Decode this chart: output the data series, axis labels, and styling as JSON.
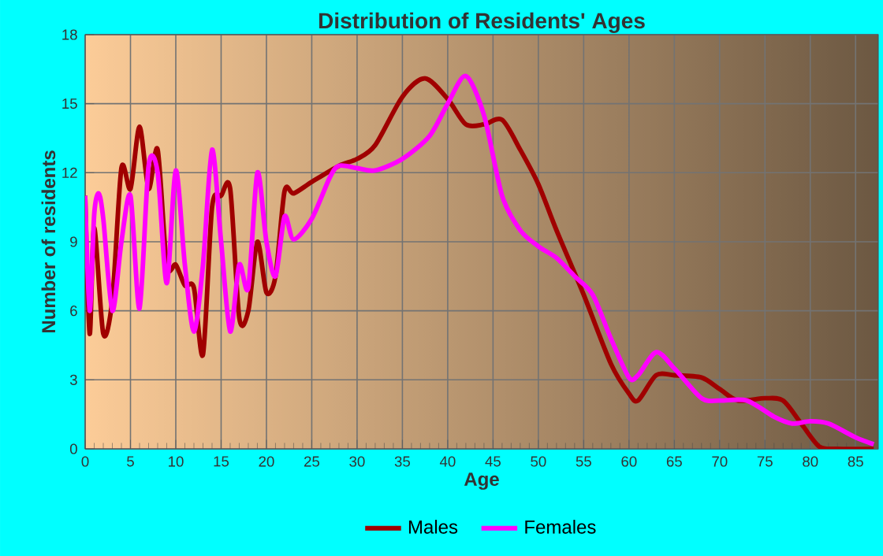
{
  "chart_data": {
    "type": "line",
    "title": "Distribution of Residents' Ages",
    "xlabel": "Age",
    "ylabel": "Number of residents",
    "xlim": [
      0,
      87.5
    ],
    "ylim": [
      0,
      18
    ],
    "xticks": [
      0,
      5,
      10,
      15,
      20,
      25,
      30,
      35,
      40,
      45,
      50,
      55,
      60,
      65,
      70,
      75,
      80,
      85
    ],
    "yticks": [
      0,
      3,
      6,
      9,
      12,
      15,
      18
    ],
    "grid": true,
    "legend": "bottom",
    "line_style": "solid",
    "series": [
      {
        "name": "Males",
        "color": "#a00000",
        "x": [
          0,
          0.5,
          1,
          2,
          3,
          4,
          5,
          6,
          7,
          8,
          9,
          10,
          11,
          12,
          13,
          14,
          15,
          16,
          17,
          18,
          19,
          20,
          21,
          22,
          23,
          25,
          28,
          30,
          32,
          35,
          37.5,
          40,
          42,
          44,
          46,
          48,
          50,
          52,
          55,
          58,
          60,
          61,
          63,
          65,
          68,
          70,
          72,
          75,
          77,
          79,
          81,
          83,
          87
        ],
        "values": [
          11,
          5,
          9.6,
          5,
          6.5,
          12.2,
          11.3,
          14,
          11.3,
          13,
          8,
          8,
          7.1,
          7,
          4.1,
          10.5,
          11,
          11.3,
          5.7,
          6,
          9,
          6.8,
          7.5,
          11.2,
          11.1,
          11.6,
          12.3,
          12.6,
          13.2,
          15.3,
          16.1,
          15.2,
          14.1,
          14.1,
          14.3,
          13,
          11.5,
          9.5,
          6.7,
          3.7,
          2.4,
          2.1,
          3.2,
          3.2,
          3.1,
          2.6,
          2.1,
          2.2,
          2.1,
          1.1,
          0.1,
          0,
          0
        ]
      },
      {
        "name": "Females",
        "color": "#ff00ff",
        "x": [
          0,
          0.5,
          1,
          1.5,
          2,
          3,
          4,
          5,
          6,
          7,
          8,
          9,
          10,
          11,
          12,
          13,
          14,
          15,
          16,
          17,
          18,
          19,
          20,
          21,
          22,
          23,
          25,
          27,
          28,
          30,
          32,
          35,
          38,
          40,
          42,
          44,
          46,
          48,
          50,
          52,
          54,
          56,
          58,
          60,
          61,
          63,
          65,
          68,
          70,
          73,
          76,
          78,
          80,
          82,
          85,
          87
        ],
        "values": [
          11,
          6,
          10.2,
          11.1,
          10,
          6,
          9,
          11,
          6.1,
          12.3,
          12,
          7.2,
          12.1,
          8,
          5.1,
          8,
          13,
          9,
          5.1,
          8,
          7,
          12,
          9,
          7.5,
          10.1,
          9.1,
          10,
          11.8,
          12.3,
          12.2,
          12.1,
          12.6,
          13.6,
          15,
          16.2,
          14.5,
          11,
          9.5,
          8.8,
          8.3,
          7.5,
          6.7,
          4.8,
          3.1,
          3.2,
          4.2,
          3.5,
          2.2,
          2.1,
          2.1,
          1.4,
          1.1,
          1.2,
          1.1,
          0.5,
          0.2
        ]
      }
    ]
  }
}
